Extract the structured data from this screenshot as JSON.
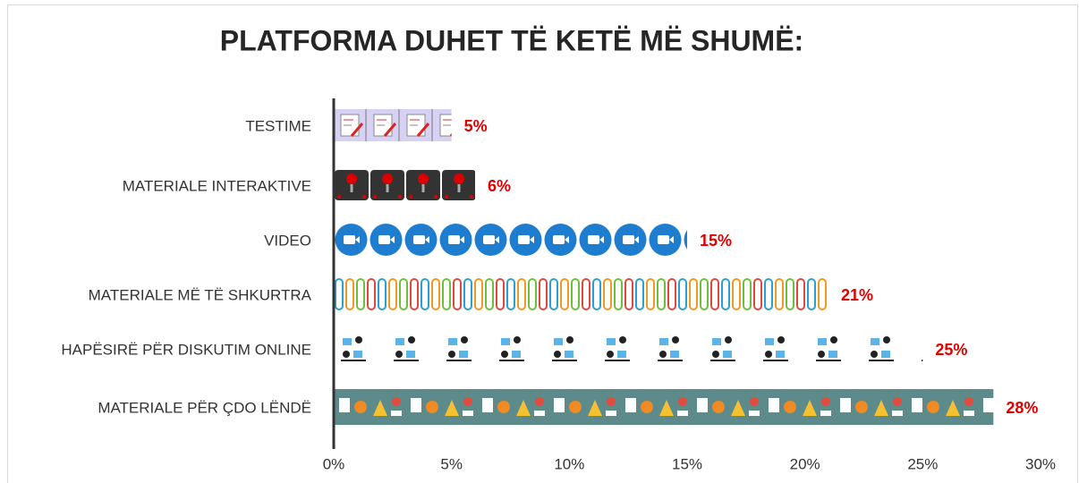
{
  "chart_data": {
    "type": "bar",
    "orientation": "horizontal",
    "title": "PLATFORMA DUHET TË KETË MË SHUMË:",
    "categories": [
      "TESTIME",
      "MATERIALE INTERAKTIVE",
      "VIDEO",
      "MATERIALE MË TË SHKURTRA",
      "HAPËSIRË PËR DISKUTIM ONLINE",
      "MATERIALE PËR ÇDO LËNDË"
    ],
    "values": [
      5,
      6,
      15,
      21,
      25,
      28
    ],
    "value_labels": [
      "5%",
      "6%",
      "15%",
      "21%",
      "25%",
      "28%"
    ],
    "xlim": [
      0,
      30
    ],
    "xticks": [
      {
        "value": 0,
        "label": "0%"
      },
      {
        "value": 5,
        "label": "5%"
      },
      {
        "value": 10,
        "label": "10%"
      },
      {
        "value": 15,
        "label": "15%"
      },
      {
        "value": 20,
        "label": "20%"
      },
      {
        "value": 25,
        "label": "25%"
      },
      {
        "value": 30,
        "label": "30%"
      }
    ]
  }
}
